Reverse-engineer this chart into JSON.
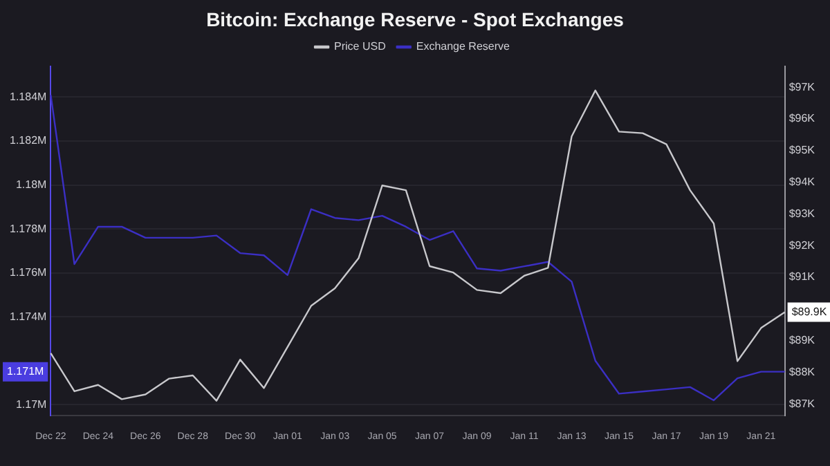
{
  "chart_data": {
    "type": "line",
    "title": "Bitcoin: Exchange Reserve - Spot Exchanges",
    "categories": [
      "Dec 22",
      null,
      "Dec 24",
      null,
      "Dec 26",
      null,
      "Dec 28",
      null,
      "Dec 30",
      null,
      "Jan 01",
      null,
      "Jan 03",
      null,
      "Jan 05",
      null,
      "Jan 07",
      null,
      "Jan 09",
      null,
      "Jan 11",
      null,
      "Jan 13",
      null,
      "Jan 15",
      null,
      "Jan 17",
      null,
      "Jan 19",
      null,
      "Jan 21",
      null
    ],
    "series": [
      {
        "name": "Price USD",
        "color": "#c8c8cc",
        "axis": "y2",
        "values": [
          88.6,
          87.4,
          87.6,
          87.15,
          87.3,
          87.8,
          87.9,
          87.1,
          88.4,
          87.5,
          88.8,
          90.1,
          90.65,
          91.6,
          93.9,
          93.75,
          91.35,
          91.15,
          90.6,
          90.5,
          91.05,
          91.3,
          95.45,
          96.9,
          95.6,
          95.55,
          95.2,
          93.75,
          92.7,
          88.35,
          89.4,
          89.9
        ],
        "value_labels": [
          null,
          null,
          null,
          null,
          null,
          null,
          null,
          null,
          null,
          null,
          null,
          null,
          null,
          null,
          null,
          null,
          null,
          null,
          null,
          null,
          null,
          null,
          null,
          null,
          null,
          null,
          null,
          null,
          null,
          null,
          null,
          "$89.9K"
        ]
      },
      {
        "name": "Exchange Reserve",
        "color": "#3b2fc4",
        "axis": "y",
        "values": [
          1.1841,
          1.1764,
          1.1781,
          1.1781,
          1.1776,
          1.1776,
          1.1776,
          1.1777,
          1.1769,
          1.1768,
          1.1759,
          1.1789,
          1.1785,
          1.1784,
          1.1786,
          1.1781,
          1.1775,
          1.1779,
          1.1762,
          1.1761,
          1.1763,
          1.1765,
          1.1756,
          1.172,
          1.1705,
          1.1706,
          1.1707,
          1.1708,
          1.1702,
          1.1712,
          1.1715,
          1.1715
        ],
        "value_labels": [
          null,
          null,
          null,
          null,
          null,
          null,
          null,
          null,
          null,
          null,
          null,
          null,
          null,
          null,
          null,
          null,
          null,
          null,
          null,
          null,
          null,
          null,
          null,
          null,
          null,
          null,
          null,
          null,
          null,
          null,
          null,
          null
        ]
      }
    ],
    "ylim": [
      1.1695,
      1.1854
    ],
    "yticks": [
      {
        "value": 1.17,
        "label": "1.17M"
      },
      {
        "value": 1.174,
        "label": "1.174M"
      },
      {
        "value": 1.176,
        "label": "1.176M"
      },
      {
        "value": 1.178,
        "label": "1.178M"
      },
      {
        "value": 1.18,
        "label": "1.18M"
      },
      {
        "value": 1.182,
        "label": "1.182M"
      },
      {
        "value": 1.184,
        "label": "1.184M"
      }
    ],
    "y2lim": [
      86.63,
      97.66
    ],
    "y2ticks": [
      {
        "value": 87,
        "label": "$87K"
      },
      {
        "value": 88,
        "label": "$88K"
      },
      {
        "value": 89,
        "label": "$89K"
      },
      {
        "value": 91,
        "label": "$91K"
      },
      {
        "value": 92,
        "label": "$92K"
      },
      {
        "value": 93,
        "label": "$93K"
      },
      {
        "value": 94,
        "label": "$94K"
      },
      {
        "value": 95,
        "label": "$95K"
      },
      {
        "value": 96,
        "label": "$96K"
      },
      {
        "value": 97,
        "label": "$97K"
      }
    ],
    "annotations": [
      {
        "text": "1.171M",
        "y": 1.1715
      }
    ],
    "grid": "y",
    "legend": "top",
    "marker": "none",
    "line_style": "solid"
  }
}
